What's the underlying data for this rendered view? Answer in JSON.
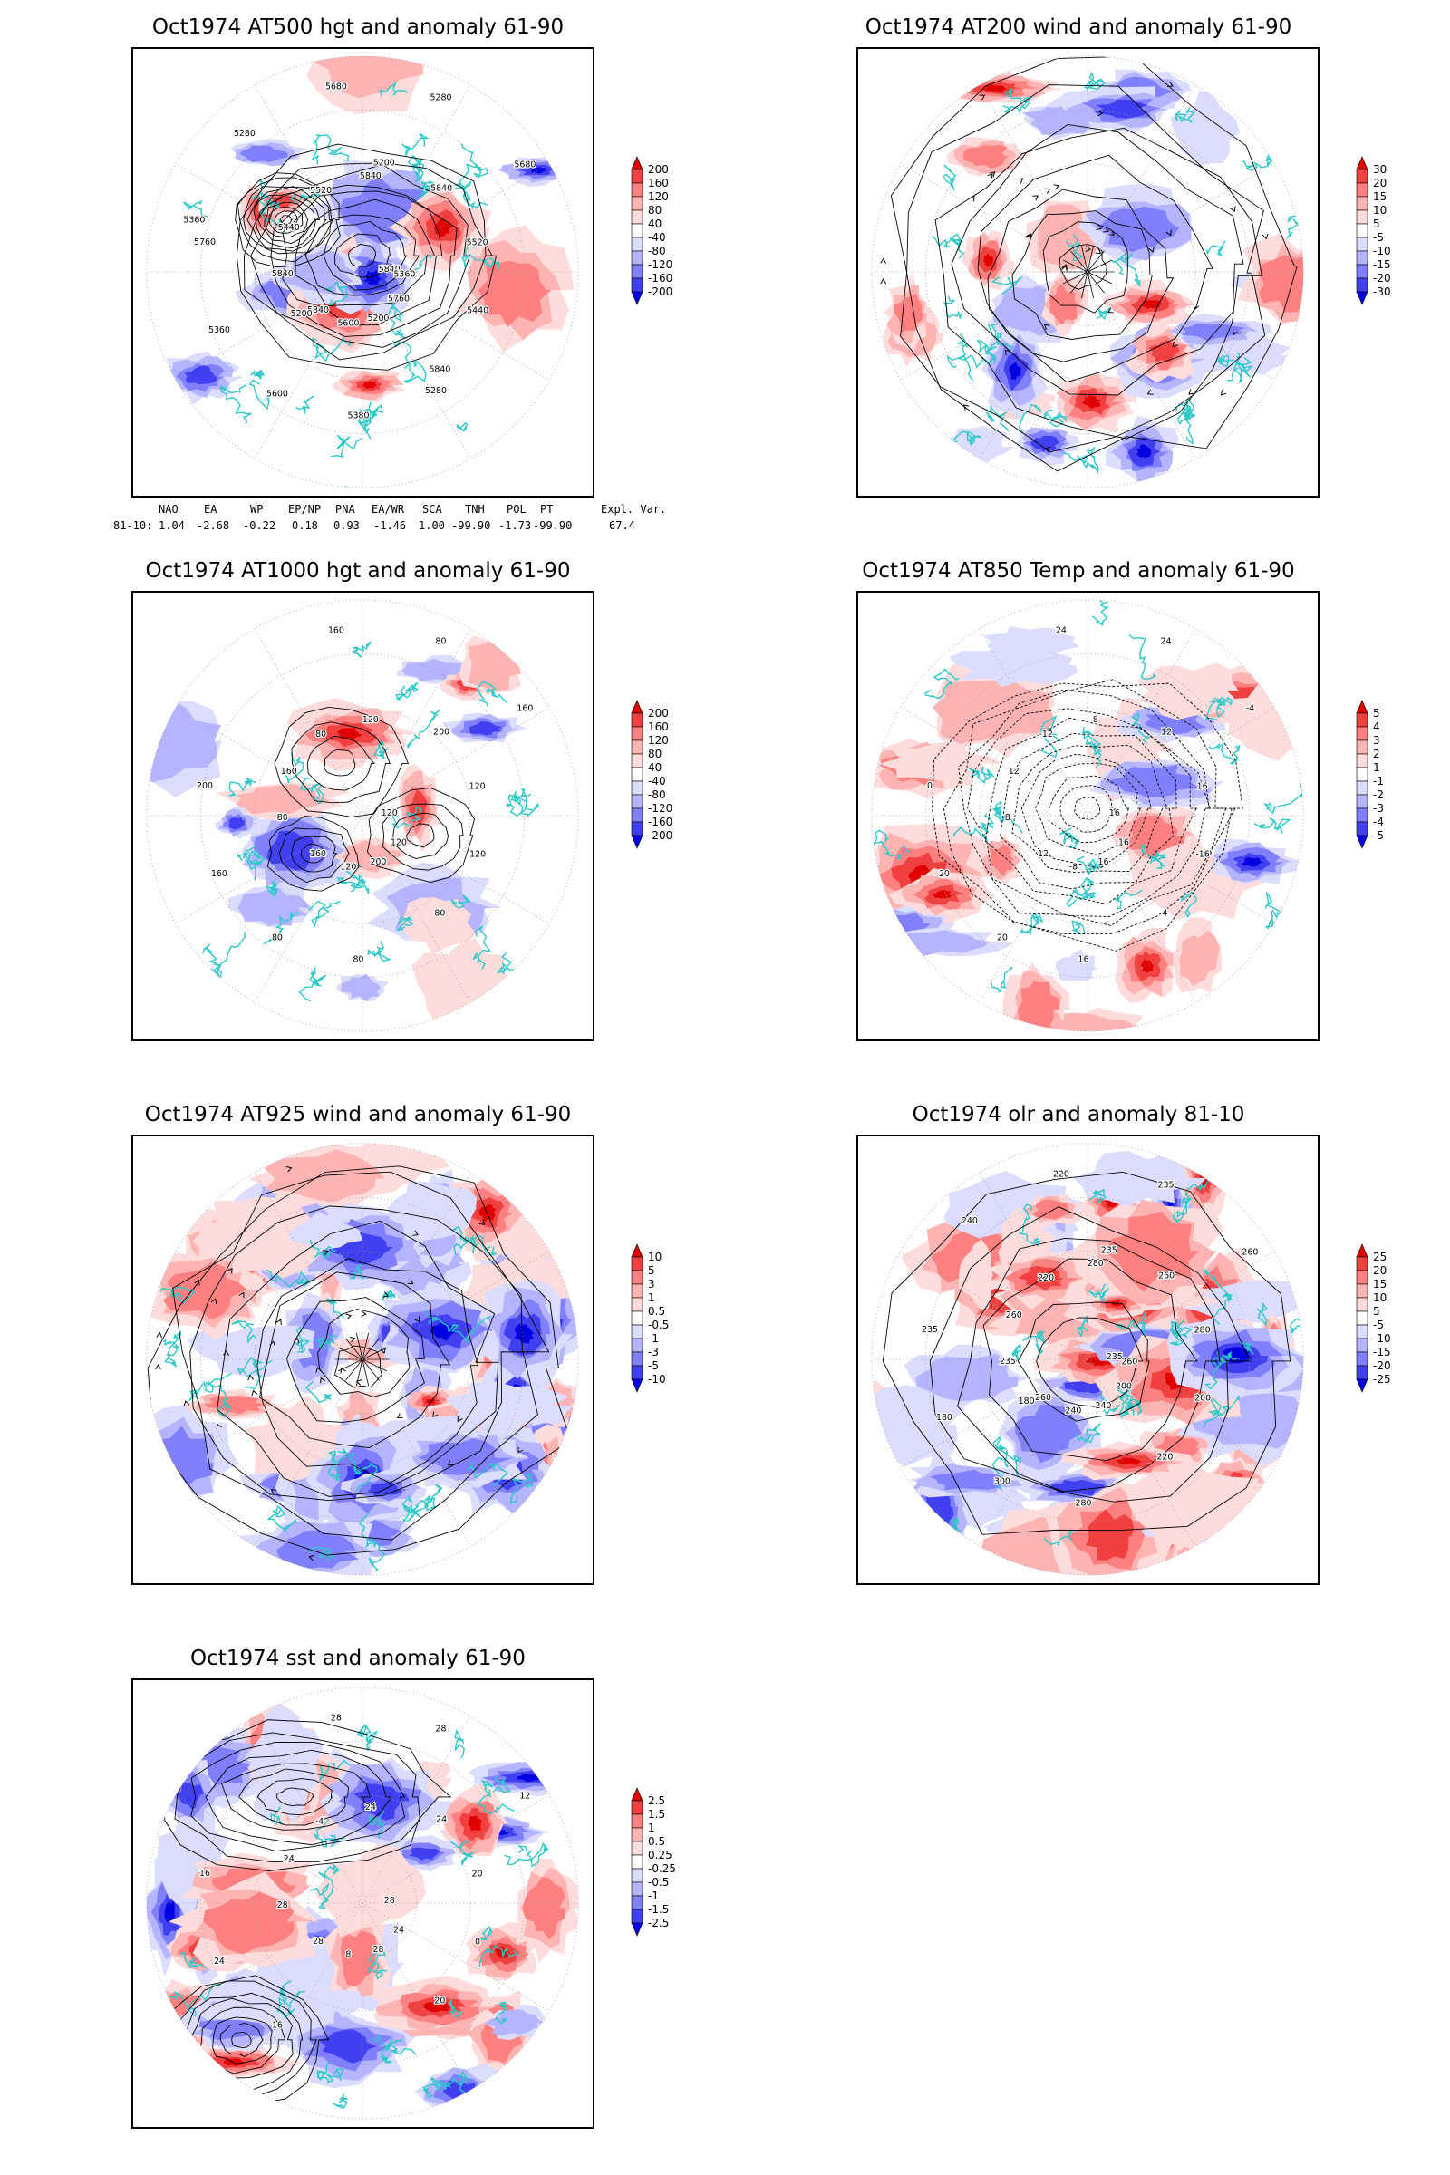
{
  "palette": {
    "coast": "#2ec8c8",
    "contour": "#000000",
    "grid": "#a0a0a0",
    "reds": [
      "#ffdcdc",
      "#ffb4b4",
      "#ff8080",
      "#f04040",
      "#e00000"
    ],
    "blues": [
      "#dcdcff",
      "#b4b4ff",
      "#8080ff",
      "#4040f0",
      "#0000e0"
    ]
  },
  "panels": [
    {
      "id": "p1",
      "title": "Oct1974 AT500 hgt and anomaly 61-90",
      "legend": [
        "200",
        "160",
        "120",
        "80",
        "40",
        "-40",
        "-80",
        "-120",
        "-160",
        "-200"
      ],
      "contour_labels": [
        "5840",
        "5840",
        "5840",
        "5840",
        "5760",
        "5680",
        "5600",
        "5520",
        "5440",
        "5360",
        "5280",
        "5200",
        "5440",
        "5520",
        "5600",
        "5680",
        "5760",
        "5840",
        "5840",
        "5380",
        "5280",
        "5360",
        "5200",
        "5200",
        "5280",
        "5360"
      ]
    },
    {
      "id": "p2",
      "title": "Oct1974 AT200 wind and anomaly 61-90",
      "legend": [
        "30",
        "20",
        "15",
        "10",
        "5",
        "-5",
        "-10",
        "-15",
        "-20",
        "-30"
      ],
      "contour_labels": []
    },
    {
      "id": "p3",
      "title": "Oct1974 AT1000 hgt and anomaly 61-90",
      "legend": [
        "200",
        "160",
        "120",
        "80",
        "40",
        "-40",
        "-80",
        "-120",
        "-160",
        "-200"
      ],
      "contour_labels": [
        "120",
        "160",
        "120",
        "80",
        "200",
        "160",
        "120",
        "80",
        "120",
        "160",
        "80",
        "200",
        "160",
        "120",
        "80",
        "160",
        "120",
        "80",
        "200",
        "80"
      ]
    },
    {
      "id": "p4",
      "title": "Oct1974 AT850 Temp and anomaly 61-90",
      "legend": [
        "5",
        "4",
        "3",
        "2",
        "1",
        "-1",
        "-2",
        "-3",
        "-4",
        "-5"
      ],
      "contour_labels": [
        "16",
        "12",
        "8",
        "4",
        "0",
        "-4",
        "-8",
        "-12",
        "-16",
        "20",
        "24",
        "16",
        "12",
        "16",
        "20",
        "24",
        "16",
        "8",
        "12",
        "16"
      ]
    },
    {
      "id": "p5",
      "title": "Oct1974 AT925 wind and anomaly 61-90",
      "legend": [
        "10",
        "5",
        "3",
        "1",
        "0.5",
        "-0.5",
        "-1",
        "-3",
        "-5",
        "-10"
      ],
      "contour_labels": []
    },
    {
      "id": "p6",
      "title": "Oct1974 olr and anomaly 81-10",
      "legend": [
        "25",
        "20",
        "15",
        "10",
        "5",
        "-5",
        "-10",
        "-15",
        "-20",
        "-25"
      ],
      "contour_labels": [
        "235",
        "260",
        "280",
        "220",
        "235",
        "260",
        "240",
        "220",
        "200",
        "180",
        "235",
        "240",
        "260",
        "280",
        "300",
        "220",
        "200",
        "235",
        "260",
        "280",
        "240",
        "260",
        "180",
        "235"
      ]
    },
    {
      "id": "p7",
      "title": "Oct1974 sst and anomaly 61-90",
      "legend": [
        "2.5",
        "1.5",
        "1",
        "0.5",
        "0.25",
        "-0.25",
        "-0.5",
        "-1",
        "-1.5",
        "-2.5"
      ],
      "contour_labels": [
        "28",
        "28",
        "24",
        "20",
        "16",
        "12",
        "8",
        "4",
        "0",
        "24",
        "28",
        "28",
        "24",
        "20",
        "16",
        "28",
        "24",
        "28",
        "24"
      ]
    }
  ],
  "indices": {
    "headers": [
      "NAO",
      "EA",
      "WP",
      "EP/NP",
      "PNA",
      "EA/WR",
      "SCA",
      "TNH",
      "POL",
      "PT",
      "Expl. Var."
    ],
    "row_label": "81-10:",
    "values": [
      "1.04",
      "-2.68",
      "-0.22",
      "0.18",
      "0.93",
      "-1.46",
      "1.00",
      "-99.90",
      "-1.73",
      "-99.90",
      "67.4"
    ]
  }
}
